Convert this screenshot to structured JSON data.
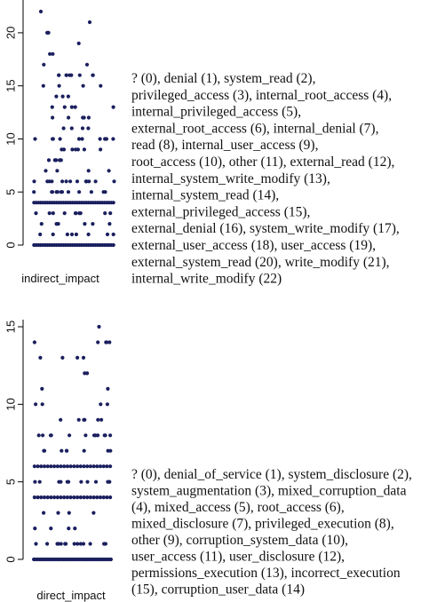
{
  "chart_data": [
    {
      "type": "scatter",
      "title": "",
      "xlabel": "indirect_impact",
      "ylabel": "",
      "ylim": [
        0,
        22
      ],
      "yticks": [
        "0",
        "5",
        "10",
        "15",
        "20"
      ],
      "counts": [
        {
          "y": 0,
          "n": 36
        },
        {
          "y": 1,
          "n": 8
        },
        {
          "y": 2,
          "n": 6
        },
        {
          "y": 3,
          "n": 10
        },
        {
          "y": 4,
          "n": 36
        },
        {
          "y": 5,
          "n": 12
        },
        {
          "y": 6,
          "n": 14
        },
        {
          "y": 7,
          "n": 4
        },
        {
          "y": 8,
          "n": 6
        },
        {
          "y": 9,
          "n": 7
        },
        {
          "y": 10,
          "n": 10
        },
        {
          "y": 11,
          "n": 4
        },
        {
          "y": 12,
          "n": 5
        },
        {
          "y": 13,
          "n": 5
        },
        {
          "y": 14,
          "n": 3
        },
        {
          "y": 15,
          "n": 4
        },
        {
          "y": 16,
          "n": 9
        },
        {
          "y": 17,
          "n": 2
        },
        {
          "y": 18,
          "n": 2
        },
        {
          "y": 19,
          "n": 1
        },
        {
          "y": 20,
          "n": 2
        },
        {
          "y": 21,
          "n": 1
        },
        {
          "y": 22,
          "n": 1
        }
      ],
      "legend": [
        "? (0), denial (1), system_read (2),",
        "privileged_access (3), internal_root_access (4),",
        "internal_privileged_access (5),",
        "external_root_access (6), internal_denial (7),",
        "read (8), internal_user_access (9),",
        "root_access (10), other (11), external_read (12),",
        "internal_system_write_modify (13),",
        "internal_system_read (14),",
        "external_privileged_access (15),",
        "external_denial (16), system_write_modify (17),",
        "external_user_access (18), user_access (19),",
        "external_system_read (20), write_modify (21),",
        "internal_write_modify (22)"
      ]
    },
    {
      "type": "scatter",
      "title": "",
      "xlabel": "direct_impact",
      "ylabel": "",
      "ylim": [
        0,
        15
      ],
      "yticks": [
        "0",
        "5",
        "10",
        "15"
      ],
      "counts": [
        {
          "y": 0,
          "n": 40
        },
        {
          "y": 1,
          "n": 14
        },
        {
          "y": 2,
          "n": 4
        },
        {
          "y": 3,
          "n": 4
        },
        {
          "y": 4,
          "n": 24
        },
        {
          "y": 5,
          "n": 12
        },
        {
          "y": 6,
          "n": 24
        },
        {
          "y": 7,
          "n": 8
        },
        {
          "y": 8,
          "n": 12
        },
        {
          "y": 9,
          "n": 6
        },
        {
          "y": 10,
          "n": 4
        },
        {
          "y": 11,
          "n": 2
        },
        {
          "y": 12,
          "n": 2
        },
        {
          "y": 13,
          "n": 4
        },
        {
          "y": 14,
          "n": 5
        },
        {
          "y": 15,
          "n": 1
        }
      ],
      "legend": [
        "? (0), denial_of_service (1), system_disclosure (2),",
        "system_augmentation (3), mixed_corruption_data",
        "(4), mixed_access (5), root_access (6),",
        "mixed_disclosure (7), privileged_execution (8),",
        "other (9), corruption_system_data (10),",
        "user_access (11), user_disclosure (12),",
        "permissions_execution (13), incorrect_execution",
        "(15), corruption_user_data (14)"
      ]
    }
  ],
  "colors": {
    "point": "#1a1f5e",
    "axis": "#000000"
  }
}
